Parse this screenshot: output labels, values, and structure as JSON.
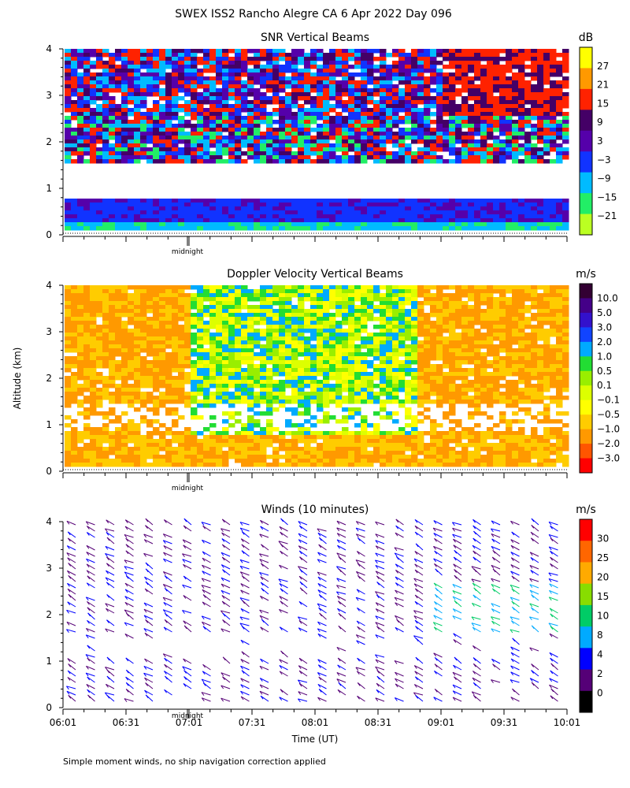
{
  "figure": {
    "title": "SWEX ISS2 Rancho Alegre CA    6 Apr 2022 Day 096",
    "ylabel": "Altitude (km)",
    "xlabel": "Time (UT)",
    "footnote": "Simple moment winds, no ship navigation correction applied",
    "marker_label": "midnight"
  },
  "chart_data": [
    {
      "type": "heatmap",
      "title": "SNR Vertical Beams",
      "units": "dB",
      "ylim": [
        0,
        4
      ],
      "y_ticks": [
        "0",
        "1",
        "2",
        "3",
        "4"
      ],
      "colorbar_labels": [
        "27",
        "21",
        "15",
        "9",
        "3",
        "−3",
        "−9",
        "−15",
        "−21"
      ],
      "colorbar_colors": [
        "#ffff00",
        "#ff9900",
        "#ff2200",
        "#440066",
        "#5500aa",
        "#1133ff",
        "#00bbff",
        "#22ee66",
        "#bbff22"
      ],
      "time_range": [
        "06:01",
        "10:01"
      ]
    },
    {
      "type": "heatmap",
      "title": "Doppler Velocity Vertical Beams",
      "units": "m/s",
      "ylim": [
        0,
        4
      ],
      "y_ticks": [
        "0",
        "1",
        "2",
        "3",
        "4"
      ],
      "colorbar_labels": [
        "10.0",
        "5.0",
        "3.0",
        "2.0",
        "1.0",
        "0.5",
        "0.1",
        "−0.1",
        "−0.5",
        "−1.0",
        "−2.0",
        "−3.0"
      ],
      "colorbar_colors": [
        "#330033",
        "#440088",
        "#3311cc",
        "#1144ff",
        "#00aaff",
        "#22dd33",
        "#99ee00",
        "#ddff00",
        "#ffff00",
        "#ffcc00",
        "#ff9900",
        "#ff5500",
        "#ff0000"
      ],
      "time_range": [
        "06:01",
        "10:01"
      ]
    },
    {
      "type": "scatter",
      "title": "Winds (10 minutes)",
      "units": "m/s",
      "ylim": [
        0,
        4
      ],
      "y_ticks": [
        "0",
        "1",
        "2",
        "3",
        "4"
      ],
      "x_ticks": [
        "06:01",
        "06:31",
        "07:01",
        "07:31",
        "08:01",
        "08:31",
        "09:01",
        "09:31",
        "10:01"
      ],
      "colorbar_labels": [
        "30",
        "25",
        "20",
        "15",
        "10",
        "8",
        "4",
        "2",
        "0"
      ],
      "colorbar_colors": [
        "#ff0000",
        "#ff6600",
        "#ffaa00",
        "#88dd00",
        "#00cc66",
        "#00aaff",
        "#0000ff",
        "#550077",
        "#000000"
      ]
    }
  ]
}
